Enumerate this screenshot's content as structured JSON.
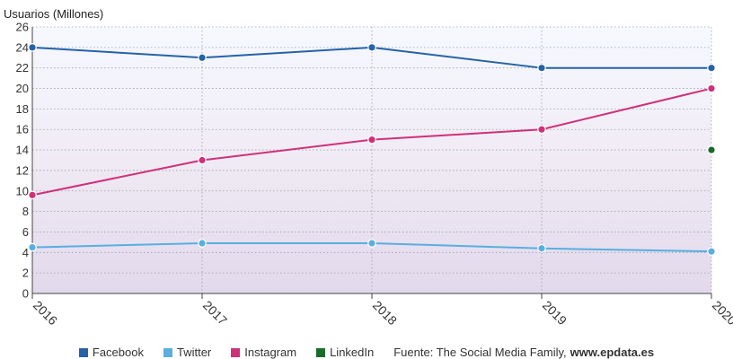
{
  "chart_data": {
    "type": "line",
    "ylabel": "Usuarios (Millones)",
    "ylim": [
      0,
      26
    ],
    "yticks": [
      0,
      2,
      4,
      6,
      8,
      10,
      12,
      14,
      16,
      18,
      20,
      22,
      24,
      26
    ],
    "x": [
      "2016",
      "2017",
      "2018",
      "2019",
      "2020"
    ],
    "grid": true,
    "legend_position": "bottom",
    "series": [
      {
        "name": "Facebook",
        "color": "#2563a6",
        "values": [
          24,
          23,
          24,
          22,
          22
        ]
      },
      {
        "name": "Twitter",
        "color": "#5aaee0",
        "values": [
          4.5,
          4.9,
          4.9,
          4.4,
          4.1
        ]
      },
      {
        "name": "Instagram",
        "color": "#d0307a",
        "values": [
          9.6,
          13,
          15,
          16,
          20
        ]
      },
      {
        "name": "LinkedIn",
        "color": "#1a6b2a",
        "values": [
          null,
          null,
          null,
          null,
          14
        ]
      }
    ]
  },
  "source": {
    "prefix": "Fuente: The Social Media Family,",
    "link": "www.epdata.es"
  }
}
